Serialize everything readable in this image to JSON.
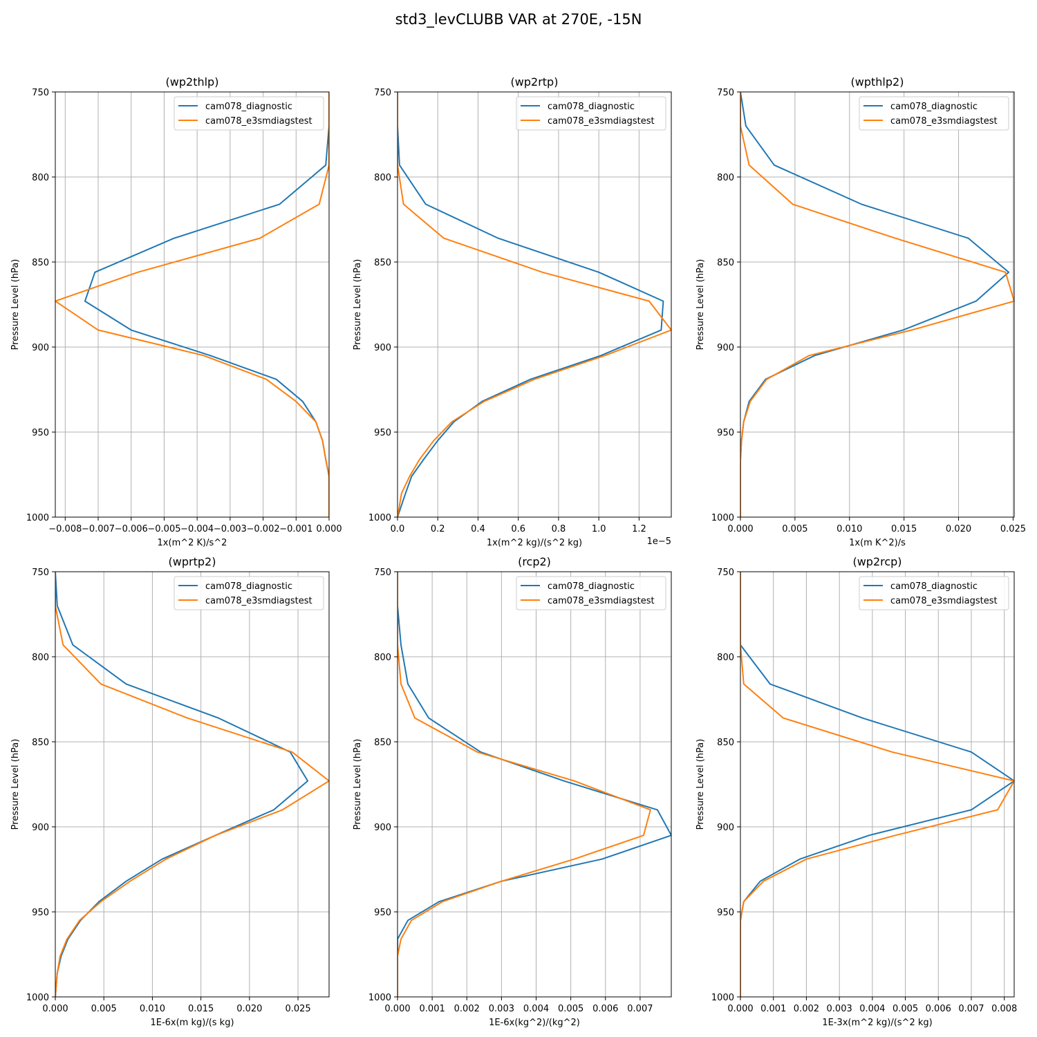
{
  "figure_title": "std3_levCLUBB VAR at 270E, -15N",
  "colors": {
    "series_0": "#1f77b4",
    "series_1": "#ff7f0e",
    "grid": "#b0b0b0"
  },
  "chart_data": [
    {
      "type": "line",
      "title": "(wp2thlp)",
      "xlabel": "1x(m^2 K)/s^2",
      "ylabel": "Pressure Level (hPa)",
      "xlim": [
        -0.0083,
        0.0
      ],
      "ylim": [
        1000,
        750
      ],
      "x_ticks": [
        -0.008,
        -0.007,
        -0.006,
        -0.005,
        -0.004,
        -0.003,
        -0.002,
        -0.001,
        0.0
      ],
      "x_tick_labels": [
        "−0.008",
        "−0.007",
        "−0.006",
        "−0.005",
        "−0.004",
        "−0.003",
        "−0.002",
        "−0.001",
        "0.000"
      ],
      "y_ticks": [
        750,
        800,
        850,
        900,
        950,
        1000
      ],
      "y_tick_labels": [
        "750",
        "800",
        "850",
        "900",
        "950",
        "1000"
      ],
      "x_offset_label": "",
      "legend": "upper right",
      "grid": true,
      "series": [
        {
          "name": "cam078_diagnostic",
          "x": [
            0.0,
            0.0,
            -0.0001,
            -0.0015,
            -0.0047,
            -0.0071,
            -0.0074,
            -0.006,
            -0.0036,
            -0.0016,
            -0.0008,
            -0.0004,
            -0.0002,
            -0.0001,
            0.0,
            0.0,
            0.0
          ],
          "y": [
            750,
            770,
            793,
            816,
            836,
            856,
            873,
            890,
            905,
            919,
            932,
            944,
            955,
            966,
            976,
            986,
            1000
          ]
        },
        {
          "name": "cam078_e3smdiagstest",
          "x": [
            0.0,
            0.0,
            0.0,
            -0.0003,
            -0.0021,
            -0.0058,
            -0.0083,
            -0.007,
            -0.0038,
            -0.0019,
            -0.001,
            -0.0004,
            -0.0002,
            -0.0001,
            0.0,
            0.0,
            0.0
          ],
          "y": [
            750,
            770,
            793,
            816,
            836,
            856,
            873,
            890,
            905,
            919,
            932,
            944,
            955,
            966,
            976,
            986,
            1000
          ]
        }
      ]
    },
    {
      "type": "line",
      "title": "(wp2rtp)",
      "xlabel": "1x(m^2 kg)/(s^2 kg)",
      "ylabel": "Pressure Level (hPa)",
      "xlim": [
        0.0,
        1.36
      ],
      "ylim": [
        1000,
        750
      ],
      "x_ticks": [
        0.0,
        0.2,
        0.4,
        0.6,
        0.8,
        1.0,
        1.2
      ],
      "x_tick_labels": [
        "0.0",
        "0.2",
        "0.4",
        "0.6",
        "0.8",
        "1.0",
        "1.2"
      ],
      "y_ticks": [
        750,
        800,
        850,
        900,
        950,
        1000
      ],
      "y_tick_labels": [
        "750",
        "800",
        "850",
        "900",
        "950",
        "1000"
      ],
      "x_offset_label": "1e−5",
      "legend": "upper right",
      "grid": true,
      "series": [
        {
          "name": "cam078_diagnostic",
          "x": [
            0.0,
            0.0,
            0.01,
            0.14,
            0.5,
            1.0,
            1.32,
            1.31,
            1.01,
            0.66,
            0.42,
            0.28,
            0.2,
            0.13,
            0.07,
            0.04,
            0.0
          ],
          "y": [
            750,
            770,
            793,
            816,
            836,
            856,
            873,
            890,
            905,
            919,
            932,
            944,
            955,
            966,
            976,
            986,
            1000
          ]
        },
        {
          "name": "cam078_e3smdiagstest",
          "x": [
            0.0,
            0.0,
            0.0,
            0.03,
            0.23,
            0.72,
            1.25,
            1.36,
            1.03,
            0.68,
            0.43,
            0.27,
            0.18,
            0.11,
            0.06,
            0.02,
            0.0
          ],
          "y": [
            750,
            770,
            793,
            816,
            836,
            856,
            873,
            890,
            905,
            919,
            932,
            944,
            955,
            966,
            976,
            986,
            1000
          ]
        }
      ]
    },
    {
      "type": "line",
      "title": "(wpthlp2)",
      "xlabel": "1x(m K^2)/s",
      "ylabel": "Pressure Level (hPa)",
      "xlim": [
        0.0,
        0.0251
      ],
      "ylim": [
        1000,
        750
      ],
      "x_ticks": [
        0.0,
        0.005,
        0.01,
        0.015,
        0.02,
        0.025
      ],
      "x_tick_labels": [
        "0.000",
        "0.005",
        "0.010",
        "0.015",
        "0.020",
        "0.025"
      ],
      "y_ticks": [
        750,
        800,
        850,
        900,
        950,
        1000
      ],
      "y_tick_labels": [
        "750",
        "800",
        "850",
        "900",
        "950",
        "1000"
      ],
      "x_offset_label": "",
      "legend": "upper right",
      "grid": true,
      "series": [
        {
          "name": "cam078_diagnostic",
          "x": [
            0.0,
            0.0005,
            0.0031,
            0.0111,
            0.0209,
            0.0246,
            0.0216,
            0.0149,
            0.0068,
            0.0023,
            0.0008,
            0.0003,
            0.0001,
            0.0,
            0.0,
            0.0,
            0.0
          ],
          "y": [
            750,
            770,
            793,
            816,
            836,
            856,
            873,
            890,
            905,
            919,
            932,
            944,
            955,
            966,
            976,
            986,
            1000
          ]
        },
        {
          "name": "cam078_e3smdiagstest",
          "x": [
            0.0,
            0.0,
            0.0008,
            0.0048,
            0.0142,
            0.0243,
            0.0251,
            0.0157,
            0.0063,
            0.0024,
            0.0009,
            0.0003,
            0.0001,
            0.0,
            0.0,
            0.0,
            0.0
          ],
          "y": [
            750,
            770,
            793,
            816,
            836,
            856,
            873,
            890,
            905,
            919,
            932,
            944,
            955,
            966,
            976,
            986,
            1000
          ]
        }
      ]
    },
    {
      "type": "line",
      "title": "(wprtp2)",
      "xlabel": "1E-6x(m kg)/(s kg)",
      "ylabel": "Pressure Level (hPa)",
      "xlim": [
        0.0,
        0.0282
      ],
      "ylim": [
        1000,
        750
      ],
      "x_ticks": [
        0.0,
        0.005,
        0.01,
        0.015,
        0.02,
        0.025
      ],
      "x_tick_labels": [
        "0.000",
        "0.005",
        "0.010",
        "0.015",
        "0.020",
        "0.025"
      ],
      "y_ticks": [
        750,
        800,
        850,
        900,
        950,
        1000
      ],
      "y_tick_labels": [
        "750",
        "800",
        "850",
        "900",
        "950",
        "1000"
      ],
      "x_offset_label": "",
      "legend": "upper right",
      "grid": true,
      "series": [
        {
          "name": "cam078_diagnostic",
          "x": [
            0.0,
            0.0002,
            0.0018,
            0.0073,
            0.0168,
            0.0242,
            0.026,
            0.0225,
            0.0165,
            0.011,
            0.0073,
            0.0045,
            0.0026,
            0.0013,
            0.0006,
            0.0002,
            0.0
          ],
          "y": [
            750,
            770,
            793,
            816,
            836,
            856,
            873,
            890,
            905,
            919,
            932,
            944,
            955,
            966,
            976,
            986,
            1000
          ]
        },
        {
          "name": "cam078_e3smdiagstest",
          "x": [
            0.0,
            0.0,
            0.0008,
            0.0047,
            0.0136,
            0.0244,
            0.0282,
            0.0234,
            0.0165,
            0.0114,
            0.0077,
            0.0047,
            0.0025,
            0.0012,
            0.0005,
            0.0002,
            0.0
          ],
          "y": [
            750,
            770,
            793,
            816,
            836,
            856,
            873,
            890,
            905,
            919,
            932,
            944,
            955,
            966,
            976,
            986,
            1000
          ]
        }
      ]
    },
    {
      "type": "line",
      "title": "(rcp2)",
      "xlabel": "1E-6x(kg^2)/(kg^2)",
      "ylabel": "Pressure Level (hPa)",
      "xlim": [
        0.0,
        0.0079
      ],
      "ylim": [
        1000,
        750
      ],
      "x_ticks": [
        0.0,
        0.001,
        0.002,
        0.003,
        0.004,
        0.005,
        0.006,
        0.007
      ],
      "x_tick_labels": [
        "0.000",
        "0.001",
        "0.002",
        "0.003",
        "0.004",
        "0.005",
        "0.006",
        "0.007"
      ],
      "y_ticks": [
        750,
        800,
        850,
        900,
        950,
        1000
      ],
      "y_tick_labels": [
        "750",
        "800",
        "850",
        "900",
        "950",
        "1000"
      ],
      "x_offset_label": "",
      "legend": "upper right",
      "grid": true,
      "series": [
        {
          "name": "cam078_diagnostic",
          "x": [
            0.0,
            0.0,
            0.0001,
            0.0003,
            0.0009,
            0.0024,
            0.0048,
            0.0075,
            0.0079,
            0.0059,
            0.003,
            0.0012,
            0.0003,
            0.0,
            0.0,
            0.0,
            0.0
          ],
          "y": [
            750,
            770,
            793,
            816,
            836,
            856,
            873,
            890,
            905,
            919,
            932,
            944,
            955,
            966,
            976,
            986,
            1000
          ]
        },
        {
          "name": "cam078_e3smdiagstest",
          "x": [
            0.0,
            0.0,
            0.0,
            0.0001,
            0.0005,
            0.0023,
            0.0051,
            0.0073,
            0.0071,
            0.0051,
            0.003,
            0.0013,
            0.0004,
            0.0001,
            0.0,
            0.0,
            0.0
          ],
          "y": [
            750,
            770,
            793,
            816,
            836,
            856,
            873,
            890,
            905,
            919,
            932,
            944,
            955,
            966,
            976,
            986,
            1000
          ]
        }
      ]
    },
    {
      "type": "line",
      "title": "(wp2rcp)",
      "xlabel": "1E-3x(m^2 kg)/(s^2 kg)",
      "ylabel": "Pressure Level (hPa)",
      "xlim": [
        0.0,
        0.0083
      ],
      "ylim": [
        1000,
        750
      ],
      "x_ticks": [
        0.0,
        0.001,
        0.002,
        0.003,
        0.004,
        0.005,
        0.006,
        0.007,
        0.008
      ],
      "x_tick_labels": [
        "0.000",
        "0.001",
        "0.002",
        "0.003",
        "0.004",
        "0.005",
        "0.006",
        "0.007",
        "0.008"
      ],
      "y_ticks": [
        750,
        800,
        850,
        900,
        950,
        1000
      ],
      "y_tick_labels": [
        "750",
        "800",
        "850",
        "900",
        "950",
        "1000"
      ],
      "x_offset_label": "",
      "legend": "upper right",
      "grid": true,
      "series": [
        {
          "name": "cam078_diagnostic",
          "x": [
            0.0,
            0.0,
            0.0,
            0.0009,
            0.0037,
            0.007,
            0.0083,
            0.007,
            0.0039,
            0.0018,
            0.0006,
            0.0001,
            0.0,
            0.0,
            0.0,
            0.0,
            0.0
          ],
          "y": [
            750,
            770,
            793,
            816,
            836,
            856,
            873,
            890,
            905,
            919,
            932,
            944,
            955,
            966,
            976,
            986,
            1000
          ]
        },
        {
          "name": "cam078_e3smdiagstest",
          "x": [
            0.0,
            0.0,
            0.0,
            0.0001,
            0.0013,
            0.0046,
            0.0083,
            0.0078,
            0.0047,
            0.002,
            0.0007,
            0.0001,
            0.0,
            0.0,
            0.0,
            0.0,
            0.0
          ],
          "y": [
            750,
            770,
            793,
            816,
            836,
            856,
            873,
            890,
            905,
            919,
            932,
            944,
            955,
            966,
            976,
            986,
            1000
          ]
        }
      ]
    }
  ]
}
